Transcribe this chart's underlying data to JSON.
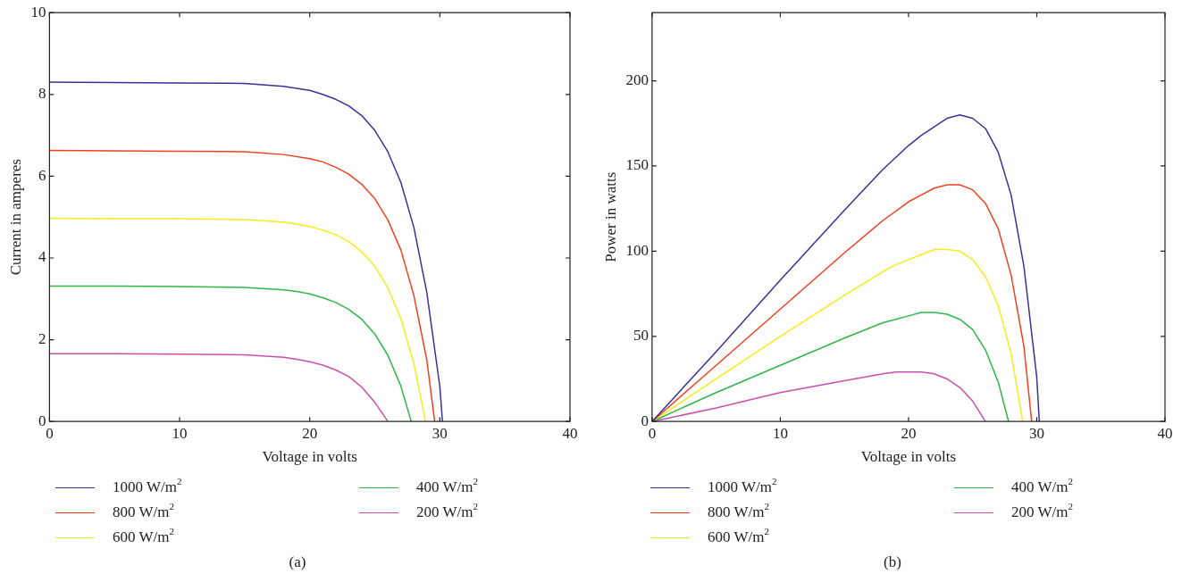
{
  "chart_data": [
    {
      "type": "line",
      "xlabel": "Voltage in volts",
      "ylabel": "Current in amperes",
      "xlim": [
        0,
        40
      ],
      "xticks": [
        0,
        10,
        20,
        30,
        40
      ],
      "ylim": [
        0,
        10
      ],
      "yticks": [
        0,
        2,
        4,
        6,
        8,
        10
      ],
      "grid": false,
      "legend": "bottom",
      "marker": "none",
      "line_style": "solid",
      "annotations": [
        "(a)"
      ],
      "series": [
        {
          "name": "1000 W/m$^{2}$",
          "color": "#3a3199",
          "x": [
            0,
            5,
            10,
            15,
            18,
            20,
            21,
            22,
            23,
            24,
            25,
            26,
            27,
            28,
            29,
            30,
            30.2
          ],
          "values": [
            8.3,
            8.29,
            8.28,
            8.27,
            8.2,
            8.1,
            8.0,
            7.88,
            7.72,
            7.48,
            7.12,
            6.6,
            5.85,
            4.75,
            3.15,
            0.85,
            0
          ]
        },
        {
          "name": "800 W/m$^{2}$",
          "color": "#f2401e",
          "x": [
            0,
            5,
            10,
            15,
            18,
            20,
            21,
            22,
            23,
            24,
            25,
            26,
            27,
            28,
            29,
            29.6
          ],
          "values": [
            6.63,
            6.62,
            6.61,
            6.6,
            6.53,
            6.43,
            6.35,
            6.22,
            6.05,
            5.8,
            5.45,
            4.93,
            4.2,
            3.08,
            1.5,
            0
          ]
        },
        {
          "name": "600 W/m$^{2}$",
          "color": "#f5ec1a",
          "x": [
            0,
            5,
            10,
            15,
            18,
            19,
            20,
            21,
            22,
            23,
            24,
            25,
            26,
            27,
            28,
            28.9
          ],
          "values": [
            4.97,
            4.96,
            4.96,
            4.94,
            4.88,
            4.83,
            4.77,
            4.68,
            4.57,
            4.4,
            4.15,
            3.8,
            3.27,
            2.52,
            1.42,
            0
          ]
        },
        {
          "name": "400 W/m$^{2}$",
          "color": "#2fb548",
          "x": [
            0,
            5,
            10,
            15,
            18,
            19,
            20,
            21,
            22,
            23,
            24,
            25,
            26,
            27,
            27.8
          ],
          "values": [
            3.31,
            3.31,
            3.3,
            3.28,
            3.22,
            3.18,
            3.12,
            3.03,
            2.91,
            2.74,
            2.5,
            2.14,
            1.62,
            0.87,
            0
          ]
        },
        {
          "name": "200 W/m$^{2}$",
          "color": "#c94fae",
          "x": [
            0,
            5,
            10,
            15,
            18,
            19,
            20,
            21,
            22,
            23,
            24,
            25,
            26
          ],
          "values": [
            1.66,
            1.66,
            1.65,
            1.63,
            1.57,
            1.52,
            1.46,
            1.38,
            1.26,
            1.1,
            0.84,
            0.47,
            0
          ]
        }
      ]
    },
    {
      "type": "line",
      "xlabel": "Voltage in volts",
      "ylabel": "Power in watts",
      "xlim": [
        0,
        40
      ],
      "xticks": [
        0,
        10,
        20,
        30,
        40
      ],
      "ylim": [
        0,
        240
      ],
      "yticks": [
        0,
        50,
        100,
        150,
        200
      ],
      "grid": false,
      "legend": "bottom",
      "marker": "none",
      "line_style": "solid",
      "annotations": [
        "(b)"
      ],
      "series": [
        {
          "name": "1000 W/m$^{2}$",
          "color": "#3a3199",
          "x": [
            0,
            5,
            10,
            15,
            18,
            20,
            21,
            22,
            23,
            24,
            25,
            26,
            27,
            28,
            29,
            30,
            30.2
          ],
          "values": [
            0,
            41,
            83,
            124,
            148,
            162,
            168,
            173,
            178,
            180,
            178,
            172,
            158,
            133,
            91,
            26,
            0
          ]
        },
        {
          "name": "800 W/m$^{2}$",
          "color": "#f2401e",
          "x": [
            0,
            5,
            10,
            15,
            18,
            20,
            21,
            22,
            23,
            24,
            25,
            26,
            27,
            28,
            29,
            29.6
          ],
          "values": [
            0,
            33,
            66,
            99,
            118,
            129,
            133,
            137,
            139,
            139,
            136,
            128,
            113,
            86,
            44,
            0
          ]
        },
        {
          "name": "600 W/m$^{2}$",
          "color": "#f5ec1a",
          "x": [
            0,
            5,
            10,
            15,
            18,
            19,
            20,
            21,
            22,
            23,
            24,
            25,
            26,
            27,
            28,
            28.9
          ],
          "values": [
            0,
            25,
            50,
            74,
            88,
            92,
            95,
            98,
            101,
            101,
            100,
            95,
            85,
            68,
            40,
            0
          ]
        },
        {
          "name": "400 W/m$^{2}$",
          "color": "#2fb548",
          "x": [
            0,
            5,
            10,
            15,
            18,
            19,
            20,
            21,
            22,
            23,
            24,
            25,
            26,
            27,
            27.8
          ],
          "values": [
            0,
            17,
            33,
            49,
            58,
            60,
            62,
            64,
            64,
            63,
            60,
            54,
            42,
            23,
            0
          ]
        },
        {
          "name": "200 W/m$^{2}$",
          "color": "#c94fae",
          "x": [
            0,
            5,
            10,
            15,
            18,
            19,
            20,
            21,
            22,
            23,
            24,
            25,
            26
          ],
          "values": [
            0,
            8,
            17,
            24,
            28,
            29,
            29,
            29,
            28,
            25,
            20,
            12,
            0
          ]
        }
      ]
    }
  ]
}
